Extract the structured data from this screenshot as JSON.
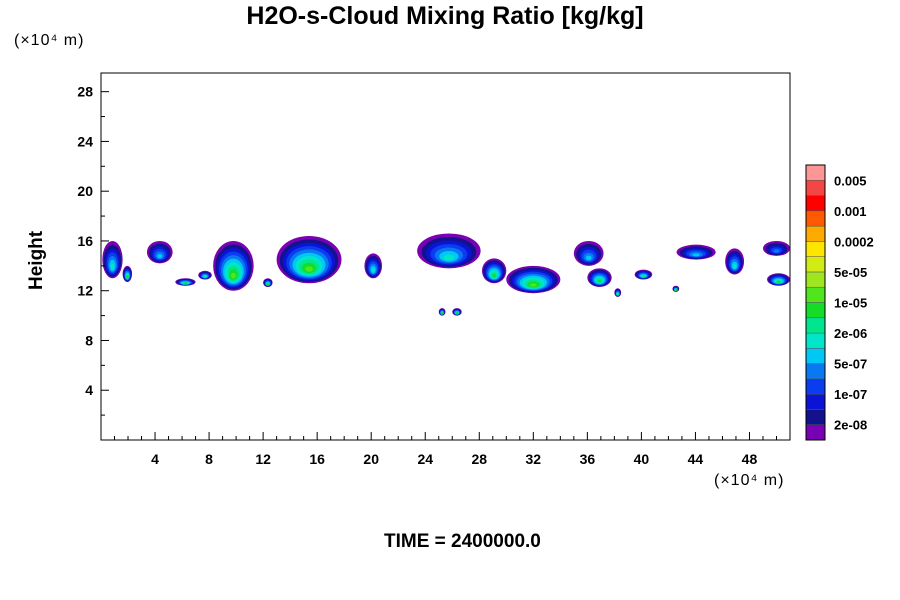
{
  "chart_data": {
    "type": "heatmap",
    "title": "H2O-s-Cloud Mixing Ratio [kg/kg]",
    "ylabel": "Height",
    "xlabel": "",
    "x_unit": "(×10⁴ m)",
    "y_unit": "(×10⁴ m)",
    "xlim": [
      0,
      51
    ],
    "ylim": [
      0,
      29.5
    ],
    "x_ticks": [
      4,
      8,
      12,
      16,
      20,
      24,
      28,
      32,
      36,
      40,
      44,
      48
    ],
    "y_ticks": [
      4,
      8,
      12,
      16,
      20,
      24,
      28
    ],
    "grid": false,
    "colorbar": {
      "colors": [
        "#7a00b4",
        "#12128c",
        "#0a14d2",
        "#0a3cf0",
        "#0a78f0",
        "#00c8f5",
        "#00e6c8",
        "#00e68c",
        "#14dc28",
        "#50e61e",
        "#a0e61e",
        "#d2eb14",
        "#ffe600",
        "#ffaa00",
        "#ff5a00",
        "#ff0000",
        "#f54646",
        "#ff9696"
      ],
      "labels": [
        "2e-08",
        "1e-07",
        "5e-07",
        "2e-06",
        "1e-05",
        "5e-05",
        "0.0002",
        "0.001",
        "0.005"
      ]
    },
    "cloud_cells": [
      {
        "x": 0.1,
        "x2": 1.6,
        "top": 16.0,
        "bottom": 13.0,
        "max_level": 6
      },
      {
        "x": 1.6,
        "x2": 2.3,
        "top": 14.0,
        "bottom": 12.7,
        "max_level": 8
      },
      {
        "x": 3.4,
        "x2": 5.3,
        "top": 16.0,
        "bottom": 14.2,
        "max_level": 5
      },
      {
        "x": 5.5,
        "x2": 7.0,
        "top": 13.0,
        "bottom": 12.4,
        "max_level": 8
      },
      {
        "x": 7.2,
        "x2": 8.2,
        "top": 13.6,
        "bottom": 12.9,
        "max_level": 7
      },
      {
        "x": 8.3,
        "x2": 11.3,
        "top": 16.0,
        "bottom": 12.0,
        "max_level": 9
      },
      {
        "x": 12.0,
        "x2": 12.7,
        "top": 13.0,
        "bottom": 12.3,
        "max_level": 8
      },
      {
        "x": 13.0,
        "x2": 17.8,
        "top": 16.4,
        "bottom": 12.6,
        "max_level": 9
      },
      {
        "x": 19.5,
        "x2": 20.8,
        "top": 15.0,
        "bottom": 13.0,
        "max_level": 6
      },
      {
        "x": 23.4,
        "x2": 28.1,
        "top": 16.6,
        "bottom": 13.8,
        "max_level": 6
      },
      {
        "x": 28.2,
        "x2": 30.0,
        "top": 14.6,
        "bottom": 12.6,
        "max_level": 8
      },
      {
        "x": 30.0,
        "x2": 34.0,
        "top": 14.0,
        "bottom": 11.8,
        "max_level": 9
      },
      {
        "x": 35.0,
        "x2": 37.2,
        "top": 16.0,
        "bottom": 14.0,
        "max_level": 5
      },
      {
        "x": 36.0,
        "x2": 37.8,
        "top": 13.8,
        "bottom": 12.3,
        "max_level": 8
      },
      {
        "x": 38.0,
        "x2": 38.5,
        "top": 12.2,
        "bottom": 11.5,
        "max_level": 7
      },
      {
        "x": 39.5,
        "x2": 40.8,
        "top": 13.7,
        "bottom": 12.9,
        "max_level": 7
      },
      {
        "x": 42.3,
        "x2": 42.8,
        "top": 12.4,
        "bottom": 11.9,
        "max_level": 8
      },
      {
        "x": 42.6,
        "x2": 45.5,
        "top": 15.7,
        "bottom": 14.5,
        "max_level": 5
      },
      {
        "x": 46.2,
        "x2": 47.6,
        "top": 15.4,
        "bottom": 13.3,
        "max_level": 6
      },
      {
        "x": 49.0,
        "x2": 51.0,
        "top": 16.0,
        "bottom": 14.8,
        "max_level": 4
      },
      {
        "x": 49.3,
        "x2": 51.0,
        "top": 13.4,
        "bottom": 12.4,
        "max_level": 8
      },
      {
        "x": 25.0,
        "x2": 25.5,
        "top": 10.6,
        "bottom": 10.0,
        "max_level": 8
      },
      {
        "x": 26.0,
        "x2": 26.7,
        "top": 10.6,
        "bottom": 10.0,
        "max_level": 8
      }
    ]
  },
  "footer": {
    "time_label": "TIME = 2400000.0"
  }
}
